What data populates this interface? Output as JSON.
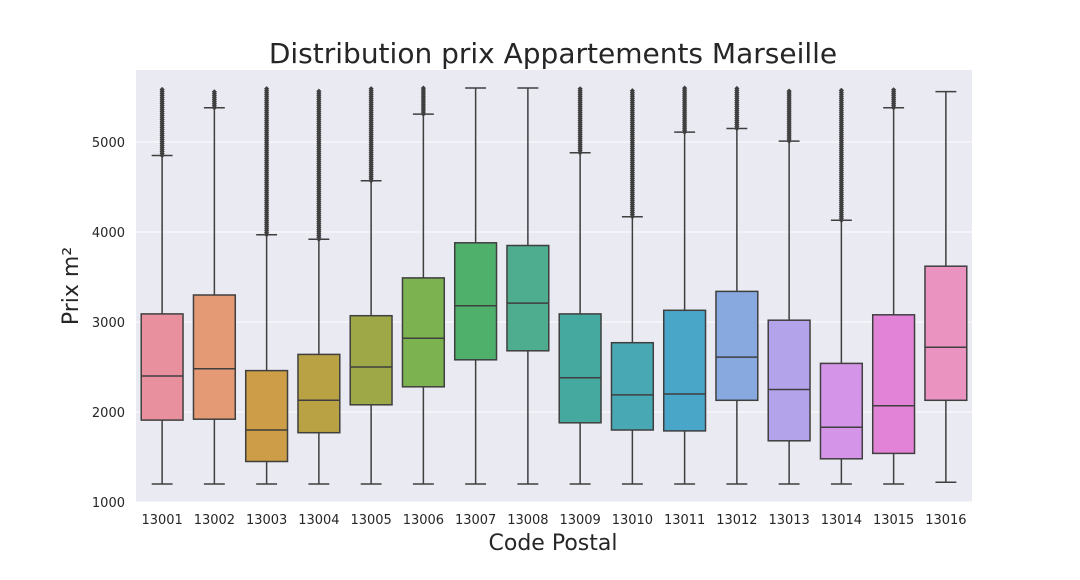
{
  "chart_data": {
    "type": "box",
    "title": "Distribution prix Appartements Marseille",
    "xlabel": "Code Postal",
    "ylabel": "Prix m²",
    "ylim": [
      1000,
      5800
    ],
    "yticks": [
      1000,
      2000,
      3000,
      4000,
      5000
    ],
    "grid": true,
    "background": "#EAEAF2",
    "categories": [
      "13001",
      "13002",
      "13003",
      "13004",
      "13005",
      "13006",
      "13007",
      "13008",
      "13009",
      "13010",
      "13011",
      "13012",
      "13013",
      "13014",
      "13015",
      "13016"
    ],
    "boxes": [
      {
        "category": "13001",
        "whisker_low": 1200,
        "q1": 1910,
        "median": 2400,
        "q3": 3090,
        "whisker_high": 4850,
        "outlier_range": [
          4850,
          5600
        ],
        "color": "#E8909E"
      },
      {
        "category": "13002",
        "whisker_low": 1200,
        "q1": 1920,
        "median": 2480,
        "q3": 3300,
        "whisker_high": 5380,
        "outlier_range": [
          5380,
          5560
        ],
        "color": "#E59A76"
      },
      {
        "category": "13003",
        "whisker_low": 1200,
        "q1": 1450,
        "median": 1800,
        "q3": 2460,
        "whisker_high": 3970,
        "outlier_range": [
          3970,
          5600
        ],
        "color": "#CD9E47"
      },
      {
        "category": "13004",
        "whisker_low": 1200,
        "q1": 1770,
        "median": 2130,
        "q3": 2640,
        "whisker_high": 3920,
        "outlier_range": [
          3920,
          5580
        ],
        "color": "#B8A244"
      },
      {
        "category": "13005",
        "whisker_low": 1200,
        "q1": 2080,
        "median": 2500,
        "q3": 3070,
        "whisker_high": 4570,
        "outlier_range": [
          4570,
          5600
        ],
        "color": "#9FA847"
      },
      {
        "category": "13006",
        "whisker_low": 1200,
        "q1": 2280,
        "median": 2820,
        "q3": 3490,
        "whisker_high": 5310,
        "outlier_range": [
          5310,
          5600
        ],
        "color": "#7CB350"
      },
      {
        "category": "13007",
        "whisker_low": 1200,
        "q1": 2580,
        "median": 3180,
        "q3": 3880,
        "whisker_high": 5600,
        "outlier_range": null,
        "color": "#4FB06C"
      },
      {
        "category": "13008",
        "whisker_low": 1200,
        "q1": 2680,
        "median": 3210,
        "q3": 3850,
        "whisker_high": 5600,
        "outlier_range": null,
        "color": "#4EAD8F"
      },
      {
        "category": "13009",
        "whisker_low": 1200,
        "q1": 1880,
        "median": 2380,
        "q3": 3090,
        "whisker_high": 4880,
        "outlier_range": [
          4880,
          5600
        ],
        "color": "#45A9A0"
      },
      {
        "category": "13010",
        "whisker_low": 1200,
        "q1": 1800,
        "median": 2190,
        "q3": 2770,
        "whisker_high": 4170,
        "outlier_range": [
          4170,
          5580
        ],
        "color": "#48A8B4"
      },
      {
        "category": "13011",
        "whisker_low": 1200,
        "q1": 1790,
        "median": 2200,
        "q3": 3130,
        "whisker_high": 5110,
        "outlier_range": [
          5110,
          5600
        ],
        "color": "#4AA6C8"
      },
      {
        "category": "13012",
        "whisker_low": 1200,
        "q1": 2130,
        "median": 2610,
        "q3": 3340,
        "whisker_high": 5150,
        "outlier_range": [
          5150,
          5600
        ],
        "color": "#87A9E0"
      },
      {
        "category": "13013",
        "whisker_low": 1200,
        "q1": 1680,
        "median": 2250,
        "q3": 3020,
        "whisker_high": 5010,
        "outlier_range": [
          5010,
          5580
        ],
        "color": "#B3A3EB"
      },
      {
        "category": "13014",
        "whisker_low": 1200,
        "q1": 1480,
        "median": 1830,
        "q3": 2540,
        "whisker_high": 4130,
        "outlier_range": [
          4130,
          5580
        ],
        "color": "#D495E8"
      },
      {
        "category": "13015",
        "whisker_low": 1200,
        "q1": 1540,
        "median": 2070,
        "q3": 3080,
        "whisker_high": 5380,
        "outlier_range": [
          5380,
          5600
        ],
        "color": "#E283D8"
      },
      {
        "category": "13016",
        "whisker_low": 1220,
        "q1": 2130,
        "median": 2720,
        "q3": 3620,
        "whisker_high": 5560,
        "outlier_range": null,
        "color": "#EB93C0"
      }
    ]
  }
}
